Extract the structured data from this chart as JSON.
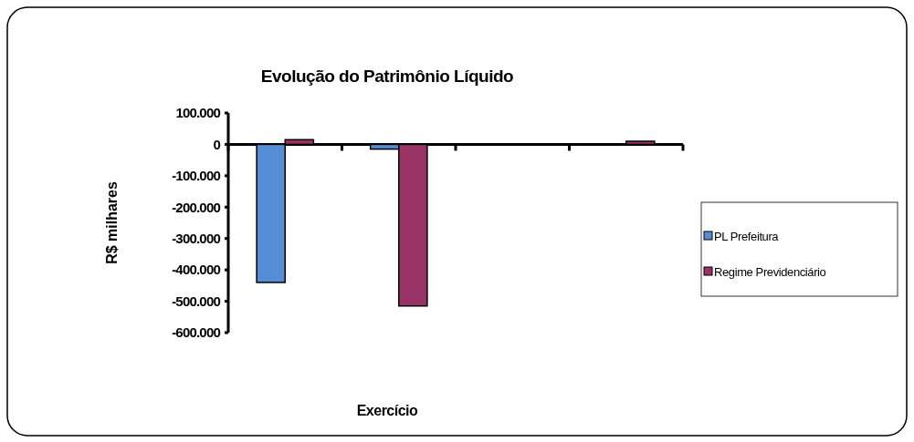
{
  "chart_data": {
    "type": "bar",
    "title": "Evolução do Patrimônio Líquido",
    "xlabel": "Exercício",
    "ylabel": "R$ milhares",
    "categories": [
      null,
      null,
      null,
      null
    ],
    "series": [
      {
        "name": "PL Prefeitura",
        "color": "#558ed5",
        "values": [
          -440000,
          -15000,
          0,
          0
        ]
      },
      {
        "name": "Regime Previdenciário",
        "color": "#993366",
        "values": [
          15000,
          -515000,
          0,
          10000
        ]
      }
    ],
    "ylim": [
      -600000,
      100000
    ],
    "yticks": [
      {
        "value": 100000,
        "label": "100.000"
      },
      {
        "value": 0,
        "label": "0"
      },
      {
        "value": -100000,
        "label": "-100.000"
      },
      {
        "value": -200000,
        "label": "-200.000"
      },
      {
        "value": -300000,
        "label": "-300.000"
      },
      {
        "value": -400000,
        "label": "-400.000"
      },
      {
        "value": -500000,
        "label": "-500.000"
      },
      {
        "value": -600000,
        "label": "-600.000"
      }
    ],
    "legend": "right"
  }
}
